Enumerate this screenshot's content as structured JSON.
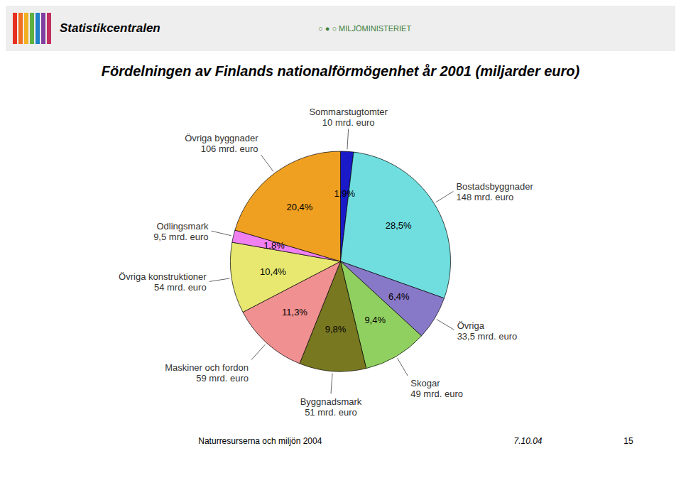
{
  "chart_data": {
    "type": "pie",
    "title": "Fördelningen av Finlands nationalförmögenhet år 2001 (miljarder euro)",
    "categories": [
      "Sommarstugtomter\n10 mrd. euro",
      "Bostadsbyggnader\n148 mrd. euro",
      "Övriga\n33,5 mrd. euro",
      "Skogar\n49 mrd. euro",
      "Byggnadsmark\n51 mrd. euro",
      "Maskiner och fordon\n59 mrd. euro",
      "Övriga konstruktioner\n54 mrd. euro",
      "Odlingsmark\n9,5 mrd. euro",
      "Övriga byggnader\n106 mrd. euro"
    ],
    "values": [
      1.9,
      28.5,
      6.4,
      9.4,
      9.8,
      11.3,
      10.4,
      1.8,
      20.4
    ],
    "value_labels": [
      "1,9%",
      "28,5%",
      "6,4%",
      "9,4%",
      "9,8%",
      "11,3%",
      "10,4%",
      "1,8%",
      "20,4%"
    ],
    "colors": [
      "#1A1AC8",
      "#70DEDE",
      "#8878C8",
      "#90D060",
      "#787820",
      "#F09090",
      "#E8E870",
      "#F080F0",
      "#F0A020"
    ],
    "data_labels": true,
    "annotations": [
      "Statistikcentralen",
      "○ ● ○  MILJÖMINISTERIET",
      "Naturresurserna och miljön 2004",
      "7.10.04",
      "15"
    ]
  }
}
